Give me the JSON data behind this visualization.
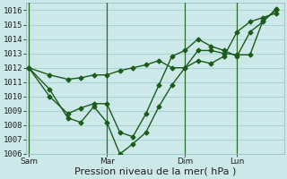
{
  "bg_color": "#cce8e8",
  "grid_color": "#99cccc",
  "line_color": "#1a5c1a",
  "vline_color": "#2d6b2d",
  "ylim": [
    1006,
    1016.5
  ],
  "yticks": [
    1006,
    1007,
    1008,
    1009,
    1010,
    1011,
    1012,
    1013,
    1014,
    1015,
    1016
  ],
  "xtick_labels": [
    "Sam",
    "Mar",
    "Dim",
    "Lun"
  ],
  "xtick_positions": [
    0,
    3,
    6,
    8
  ],
  "xlabel": "Pression niveau de la mer( hPa )",
  "xlim": [
    -0.1,
    9.8
  ],
  "series": [
    {
      "x": [
        0,
        0.8,
        1.5,
        2.0,
        2.5,
        3.0,
        3.5,
        4.0,
        4.5,
        5.0,
        5.5,
        6.0,
        6.5,
        7.0,
        7.5,
        8.0,
        8.5,
        9.0,
        9.5
      ],
      "y": [
        1012,
        1011.5,
        1011.2,
        1011.3,
        1011.5,
        1011.5,
        1011.8,
        1012.0,
        1012.2,
        1012.5,
        1012.0,
        1012.0,
        1012.5,
        1012.3,
        1012.8,
        1014.5,
        1015.2,
        1015.5,
        1015.8
      ]
    },
    {
      "x": [
        0,
        0.8,
        1.5,
        2.0,
        2.5,
        3.0,
        3.5,
        4.0,
        4.5,
        5.0,
        5.5,
        6.0,
        6.5,
        7.0,
        7.5,
        8.0,
        8.5,
        9.0,
        9.5
      ],
      "y": [
        1012,
        1010.5,
        1008.5,
        1008.2,
        1009.3,
        1008.2,
        1006.0,
        1006.7,
        1007.5,
        1009.3,
        1010.8,
        1012.0,
        1013.2,
        1013.2,
        1013.0,
        1012.9,
        1012.9,
        1015.3,
        1016.0
      ]
    },
    {
      "x": [
        0,
        0.8,
        1.5,
        2.0,
        2.5,
        3.0,
        3.5,
        4.0,
        4.5,
        5.0,
        5.5,
        6.0,
        6.5,
        7.0,
        7.5,
        8.0,
        8.5,
        9.0,
        9.5
      ],
      "y": [
        1012,
        1010.0,
        1008.8,
        1009.2,
        1009.5,
        1009.5,
        1007.5,
        1007.2,
        1008.8,
        1010.8,
        1012.8,
        1013.2,
        1014.0,
        1013.5,
        1013.2,
        1012.8,
        1014.5,
        1015.2,
        1016.1
      ]
    }
  ],
  "vlines_x": [
    0,
    3,
    6,
    8
  ],
  "marker": "D",
  "marker_size": 2.5,
  "line_width": 1.0,
  "tick_fontsize": 6.5,
  "xlabel_fontsize": 8
}
